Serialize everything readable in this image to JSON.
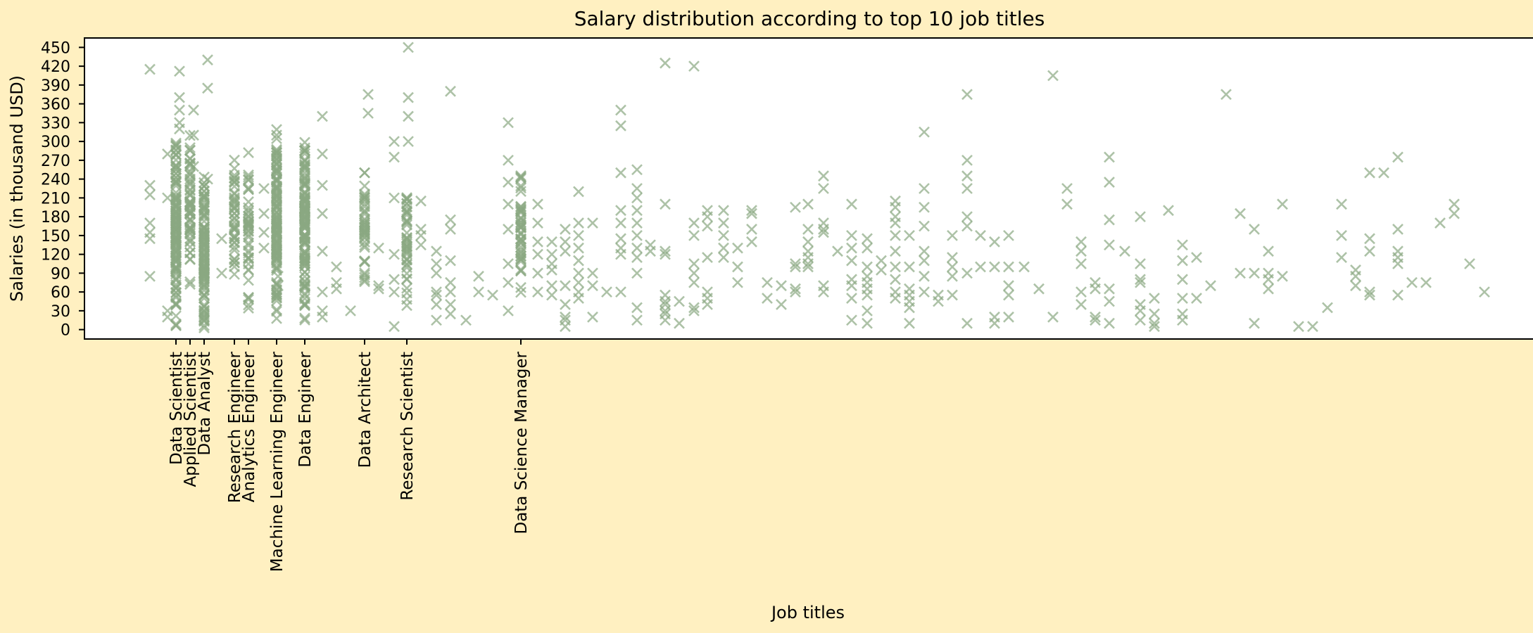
{
  "chart_data": {
    "type": "scatter",
    "title": "Salary distribution according to top 10 job titles",
    "xlabel": "Job titles",
    "ylabel": "Salaries (in thousand USD)",
    "ylim": [
      -15,
      465
    ],
    "yticks": [
      0,
      30,
      60,
      90,
      120,
      150,
      180,
      210,
      240,
      270,
      300,
      330,
      360,
      390,
      420,
      450
    ],
    "marker": "x",
    "color": "#8aa882",
    "grid": false,
    "labeled_categories": [
      {
        "label": "Data Scientist",
        "x": 250
      },
      {
        "label": "Applied Scientist",
        "x": 270
      },
      {
        "label": "Data Analyst",
        "x": 290
      },
      {
        "label": "Research Engineer",
        "x": 333
      },
      {
        "label": "Analytics Engineer",
        "x": 353
      },
      {
        "label": "Machine Learning Engineer",
        "x": 393
      },
      {
        "label": "Data Engineer",
        "x": 433
      },
      {
        "label": "Data Architect",
        "x": 518
      },
      {
        "label": "Research Scientist",
        "x": 578
      },
      {
        "label": "Data Science Manager",
        "x": 740
      }
    ],
    "clusters": [
      {
        "label": "Data Scientist",
        "x": 250,
        "min": 5,
        "max": 300,
        "count": 140
      },
      {
        "label": "Applied Scientist",
        "x": 270,
        "min": 70,
        "max": 310,
        "count": 60
      },
      {
        "label": "Data Analyst",
        "x": 290,
        "min": 0,
        "max": 250,
        "count": 130
      },
      {
        "label": "Research Engineer",
        "x": 333,
        "min": 60,
        "max": 290,
        "count": 45
      },
      {
        "label": "Analytics Engineer",
        "x": 353,
        "min": 30,
        "max": 290,
        "count": 45
      },
      {
        "label": "Machine Learning Engineer",
        "x": 393,
        "min": 10,
        "max": 340,
        "count": 140
      },
      {
        "label": "Data Engineer",
        "x": 433,
        "min": 10,
        "max": 320,
        "count": 140
      },
      {
        "label": "Data Architect",
        "x": 518,
        "min": 60,
        "max": 260,
        "count": 45
      },
      {
        "label": "Research Scientist",
        "x": 578,
        "min": 20,
        "max": 260,
        "count": 45
      },
      {
        "label": "Data Science Manager",
        "x": 740,
        "min": 40,
        "max": 250,
        "count": 50
      }
    ],
    "points": [
      [
        213,
        415
      ],
      [
        213,
        230
      ],
      [
        213,
        215
      ],
      [
        213,
        170
      ],
      [
        213,
        155
      ],
      [
        213,
        145
      ],
      [
        213,
        85
      ],
      [
        238,
        280
      ],
      [
        238,
        210
      ],
      [
        238,
        30
      ],
      [
        238,
        20
      ],
      [
        255,
        412
      ],
      [
        255,
        370
      ],
      [
        255,
        350
      ],
      [
        255,
        330
      ],
      [
        255,
        320
      ],
      [
        275,
        350
      ],
      [
        275,
        310
      ],
      [
        275,
        260
      ],
      [
        295,
        430
      ],
      [
        295,
        385
      ],
      [
        295,
        240
      ],
      [
        315,
        145
      ],
      [
        315,
        90
      ],
      [
        375,
        225
      ],
      [
        375,
        185
      ],
      [
        375,
        155
      ],
      [
        375,
        130
      ],
      [
        395,
        85
      ],
      [
        395,
        70
      ],
      [
        458,
        340
      ],
      [
        458,
        280
      ],
      [
        458,
        230
      ],
      [
        458,
        185
      ],
      [
        458,
        125
      ],
      [
        458,
        60
      ],
      [
        458,
        30
      ],
      [
        458,
        20
      ],
      [
        478,
        100
      ],
      [
        478,
        75
      ],
      [
        478,
        65
      ],
      [
        498,
        30
      ],
      [
        523,
        375
      ],
      [
        523,
        345
      ],
      [
        538,
        130
      ],
      [
        538,
        70
      ],
      [
        538,
        65
      ],
      [
        560,
        300
      ],
      [
        560,
        275
      ],
      [
        560,
        210
      ],
      [
        560,
        120
      ],
      [
        560,
        80
      ],
      [
        560,
        60
      ],
      [
        560,
        5
      ],
      [
        580,
        450
      ],
      [
        580,
        370
      ],
      [
        580,
        340
      ],
      [
        580,
        300
      ],
      [
        598,
        205
      ],
      [
        598,
        160
      ],
      [
        598,
        150
      ],
      [
        598,
        135
      ],
      [
        620,
        125
      ],
      [
        620,
        105
      ],
      [
        620,
        90
      ],
      [
        620,
        60
      ],
      [
        620,
        55
      ],
      [
        620,
        40
      ],
      [
        620,
        15
      ],
      [
        640,
        380
      ],
      [
        640,
        175
      ],
      [
        640,
        160
      ],
      [
        640,
        110
      ],
      [
        640,
        75
      ],
      [
        640,
        60
      ],
      [
        640,
        40
      ],
      [
        640,
        25
      ],
      [
        662,
        15
      ],
      [
        680,
        85
      ],
      [
        680,
        60
      ],
      [
        700,
        55
      ],
      [
        722,
        330
      ],
      [
        722,
        270
      ],
      [
        722,
        235
      ],
      [
        722,
        200
      ],
      [
        722,
        160
      ],
      [
        722,
        105
      ],
      [
        722,
        75
      ],
      [
        722,
        30
      ],
      [
        764,
        200
      ],
      [
        764,
        170
      ],
      [
        764,
        140
      ],
      [
        764,
        120
      ],
      [
        764,
        90
      ],
      [
        764,
        60
      ],
      [
        784,
        140
      ],
      [
        784,
        120
      ],
      [
        784,
        105
      ],
      [
        784,
        95
      ],
      [
        784,
        70
      ],
      [
        784,
        55
      ],
      [
        803,
        160
      ],
      [
        803,
        140
      ],
      [
        803,
        125
      ],
      [
        803,
        70
      ],
      [
        803,
        40
      ],
      [
        803,
        20
      ],
      [
        803,
        15
      ],
      [
        803,
        5
      ],
      [
        822,
        220
      ],
      [
        822,
        170
      ],
      [
        822,
        150
      ],
      [
        822,
        130
      ],
      [
        822,
        110
      ],
      [
        822,
        90
      ],
      [
        822,
        75
      ],
      [
        822,
        60
      ],
      [
        822,
        50
      ],
      [
        842,
        170
      ],
      [
        842,
        90
      ],
      [
        842,
        70
      ],
      [
        842,
        20
      ],
      [
        862,
        60
      ],
      [
        882,
        350
      ],
      [
        882,
        325
      ],
      [
        882,
        250
      ],
      [
        882,
        190
      ],
      [
        882,
        170
      ],
      [
        882,
        145
      ],
      [
        882,
        130
      ],
      [
        882,
        120
      ],
      [
        882,
        60
      ],
      [
        905,
        255
      ],
      [
        905,
        225
      ],
      [
        905,
        210
      ],
      [
        905,
        190
      ],
      [
        905,
        170
      ],
      [
        905,
        150
      ],
      [
        905,
        130
      ],
      [
        905,
        115
      ],
      [
        905,
        90
      ],
      [
        905,
        35
      ],
      [
        905,
        15
      ],
      [
        924,
        135
      ],
      [
        924,
        125
      ],
      [
        945,
        425
      ],
      [
        945,
        200
      ],
      [
        945,
        125
      ],
      [
        945,
        120
      ],
      [
        945,
        55
      ],
      [
        945,
        45
      ],
      [
        945,
        40
      ],
      [
        945,
        30
      ],
      [
        945,
        25
      ],
      [
        945,
        15
      ],
      [
        965,
        45
      ],
      [
        965,
        10
      ],
      [
        986,
        420
      ],
      [
        986,
        170
      ],
      [
        986,
        150
      ],
      [
        986,
        105
      ],
      [
        986,
        90
      ],
      [
        986,
        75
      ],
      [
        986,
        35
      ],
      [
        986,
        30
      ],
      [
        1005,
        190
      ],
      [
        1005,
        180
      ],
      [
        1005,
        165
      ],
      [
        1005,
        115
      ],
      [
        1005,
        60
      ],
      [
        1005,
        50
      ],
      [
        1005,
        40
      ],
      [
        1028,
        190
      ],
      [
        1028,
        170
      ],
      [
        1028,
        150
      ],
      [
        1028,
        130
      ],
      [
        1028,
        115
      ],
      [
        1048,
        130
      ],
      [
        1048,
        100
      ],
      [
        1048,
        75
      ],
      [
        1068,
        190
      ],
      [
        1068,
        185
      ],
      [
        1068,
        160
      ],
      [
        1068,
        140
      ],
      [
        1090,
        75
      ],
      [
        1090,
        50
      ],
      [
        1110,
        70
      ],
      [
        1110,
        40
      ],
      [
        1130,
        195
      ],
      [
        1130,
        105
      ],
      [
        1130,
        100
      ],
      [
        1130,
        65
      ],
      [
        1130,
        60
      ],
      [
        1148,
        200
      ],
      [
        1148,
        160
      ],
      [
        1148,
        140
      ],
      [
        1148,
        125
      ],
      [
        1148,
        115
      ],
      [
        1148,
        105
      ],
      [
        1148,
        100
      ],
      [
        1170,
        245
      ],
      [
        1170,
        225
      ],
      [
        1170,
        170
      ],
      [
        1170,
        160
      ],
      [
        1170,
        155
      ],
      [
        1170,
        70
      ],
      [
        1170,
        60
      ],
      [
        1190,
        125
      ],
      [
        1210,
        200
      ],
      [
        1210,
        150
      ],
      [
        1210,
        130
      ],
      [
        1210,
        110
      ],
      [
        1210,
        80
      ],
      [
        1210,
        70
      ],
      [
        1210,
        50
      ],
      [
        1210,
        15
      ],
      [
        1232,
        145
      ],
      [
        1232,
        130
      ],
      [
        1232,
        100
      ],
      [
        1232,
        85
      ],
      [
        1232,
        75
      ],
      [
        1232,
        65
      ],
      [
        1232,
        55
      ],
      [
        1232,
        30
      ],
      [
        1232,
        10
      ],
      [
        1252,
        110
      ],
      [
        1252,
        95
      ],
      [
        1272,
        205
      ],
      [
        1272,
        195
      ],
      [
        1272,
        180
      ],
      [
        1272,
        170
      ],
      [
        1272,
        150
      ],
      [
        1272,
        125
      ],
      [
        1272,
        100
      ],
      [
        1272,
        80
      ],
      [
        1272,
        60
      ],
      [
        1272,
        50
      ],
      [
        1292,
        150
      ],
      [
        1292,
        100
      ],
      [
        1292,
        65
      ],
      [
        1292,
        55
      ],
      [
        1292,
        45
      ],
      [
        1292,
        35
      ],
      [
        1292,
        10
      ],
      [
        1313,
        315
      ],
      [
        1313,
        225
      ],
      [
        1313,
        195
      ],
      [
        1313,
        165
      ],
      [
        1313,
        125
      ],
      [
        1313,
        110
      ],
      [
        1313,
        85
      ],
      [
        1313,
        60
      ],
      [
        1333,
        55
      ],
      [
        1333,
        45
      ],
      [
        1353,
        150
      ],
      [
        1353,
        115
      ],
      [
        1353,
        100
      ],
      [
        1353,
        85
      ],
      [
        1353,
        55
      ],
      [
        1374,
        375
      ],
      [
        1374,
        270
      ],
      [
        1374,
        245
      ],
      [
        1374,
        225
      ],
      [
        1374,
        180
      ],
      [
        1374,
        165
      ],
      [
        1374,
        90
      ],
      [
        1374,
        10
      ],
      [
        1393,
        150
      ],
      [
        1393,
        100
      ],
      [
        1413,
        140
      ],
      [
        1413,
        100
      ],
      [
        1413,
        20
      ],
      [
        1413,
        10
      ],
      [
        1433,
        150
      ],
      [
        1433,
        100
      ],
      [
        1433,
        70
      ],
      [
        1433,
        55
      ],
      [
        1433,
        20
      ],
      [
        1455,
        100
      ],
      [
        1476,
        65
      ],
      [
        1496,
        405
      ],
      [
        1496,
        20
      ],
      [
        1516,
        225
      ],
      [
        1516,
        200
      ],
      [
        1536,
        140
      ],
      [
        1536,
        125
      ],
      [
        1536,
        105
      ],
      [
        1536,
        60
      ],
      [
        1536,
        40
      ],
      [
        1556,
        75
      ],
      [
        1556,
        65
      ],
      [
        1556,
        20
      ],
      [
        1556,
        15
      ],
      [
        1576,
        275
      ],
      [
        1576,
        235
      ],
      [
        1576,
        175
      ],
      [
        1576,
        135
      ],
      [
        1576,
        65
      ],
      [
        1576,
        45
      ],
      [
        1576,
        10
      ],
      [
        1598,
        125
      ],
      [
        1620,
        180
      ],
      [
        1620,
        105
      ],
      [
        1620,
        80
      ],
      [
        1620,
        75
      ],
      [
        1620,
        40
      ],
      [
        1620,
        30
      ],
      [
        1620,
        15
      ],
      [
        1640,
        50
      ],
      [
        1640,
        25
      ],
      [
        1640,
        10
      ],
      [
        1640,
        5
      ],
      [
        1660,
        190
      ],
      [
        1680,
        135
      ],
      [
        1680,
        110
      ],
      [
        1680,
        80
      ],
      [
        1680,
        50
      ],
      [
        1680,
        25
      ],
      [
        1680,
        15
      ],
      [
        1700,
        115
      ],
      [
        1700,
        50
      ],
      [
        1720,
        70
      ],
      [
        1742,
        375
      ],
      [
        1762,
        185
      ],
      [
        1762,
        90
      ],
      [
        1782,
        160
      ],
      [
        1782,
        90
      ],
      [
        1782,
        10
      ],
      [
        1802,
        125
      ],
      [
        1802,
        90
      ],
      [
        1802,
        80
      ],
      [
        1802,
        65
      ],
      [
        1822,
        200
      ],
      [
        1822,
        85
      ],
      [
        1845,
        5
      ],
      [
        1865,
        5
      ],
      [
        1886,
        35
      ],
      [
        1906,
        200
      ],
      [
        1906,
        150
      ],
      [
        1906,
        115
      ],
      [
        1926,
        95
      ],
      [
        1926,
        85
      ],
      [
        1926,
        70
      ],
      [
        1946,
        250
      ],
      [
        1946,
        145
      ],
      [
        1946,
        125
      ],
      [
        1946,
        60
      ],
      [
        1946,
        55
      ],
      [
        1966,
        250
      ],
      [
        1986,
        275
      ],
      [
        1986,
        160
      ],
      [
        1986,
        125
      ],
      [
        1986,
        115
      ],
      [
        1986,
        105
      ],
      [
        1986,
        55
      ],
      [
        2006,
        75
      ],
      [
        2026,
        75
      ],
      [
        2046,
        170
      ],
      [
        2066,
        200
      ],
      [
        2066,
        185
      ],
      [
        2088,
        105
      ],
      [
        2109,
        60
      ]
    ]
  }
}
